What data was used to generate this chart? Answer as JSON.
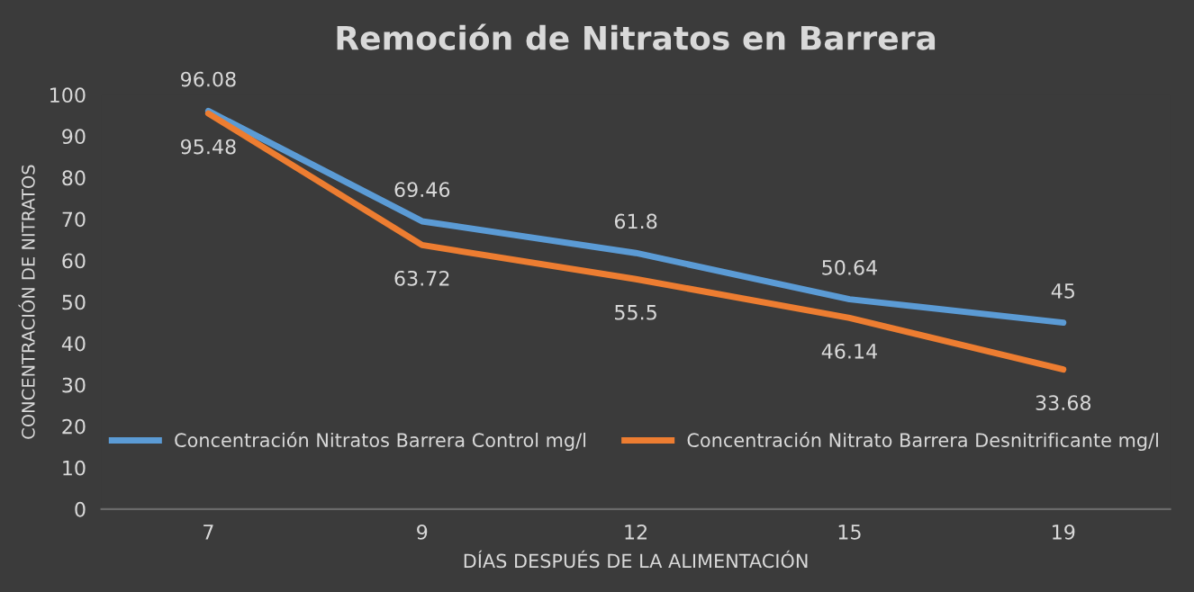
{
  "chart_data": {
    "type": "line",
    "title": "Remoción de Nitratos en Barrera",
    "xlabel": "DÍAS DESPUÉS DE LA ALIMENTACIÓN",
    "ylabel": "CONCENTRACIÓN DE NITRATOS",
    "categories": [
      "7",
      "9",
      "12",
      "15",
      "19"
    ],
    "series": [
      {
        "name": "Concentración Nitratos Barrera Control mg/l",
        "color": "#5b9bd5",
        "values": [
          96.08,
          69.46,
          61.8,
          50.64,
          45
        ]
      },
      {
        "name": "Concentración Nitrato Barrera Desnitrificante mg/l",
        "color": "#ed7d31",
        "values": [
          95.48,
          63.72,
          55.5,
          46.14,
          33.68
        ]
      }
    ],
    "ylim": [
      0,
      100
    ],
    "yticks": [
      0,
      10,
      20,
      30,
      40,
      50,
      60,
      70,
      80,
      90,
      100
    ],
    "grid": false,
    "legend": "bottom",
    "marker": "none",
    "line_style": "solid",
    "data_labels": true
  }
}
